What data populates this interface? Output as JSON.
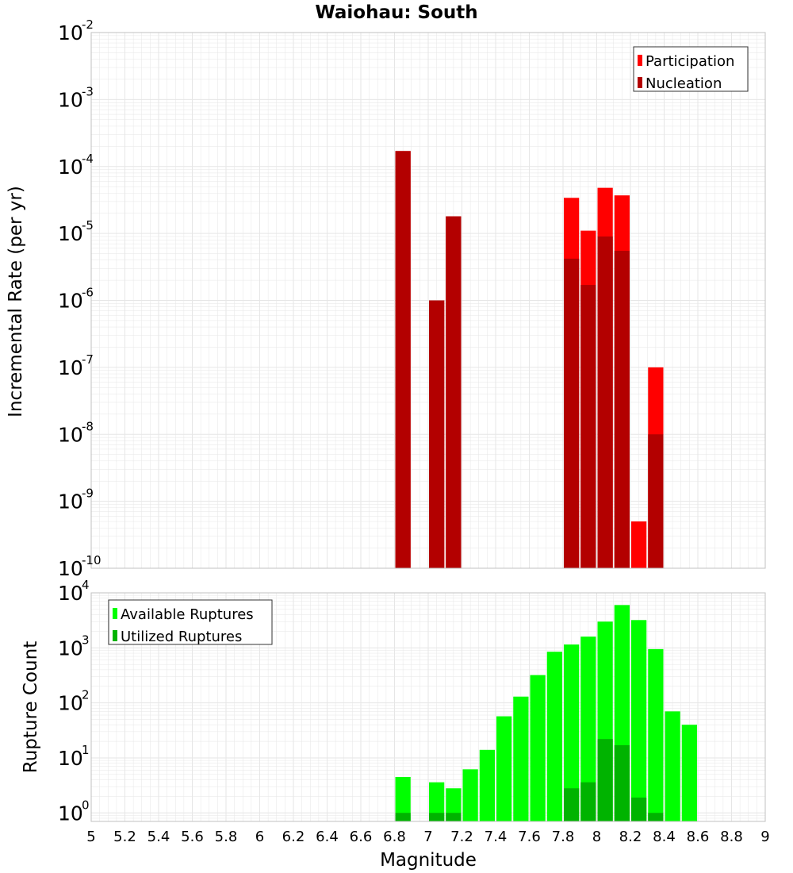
{
  "title": "Waiohau: South",
  "xlabel": "Magnitude",
  "x_ticks": [
    "5",
    "5.2",
    "5.4",
    "5.6",
    "5.8",
    "6",
    "6.2",
    "6.4",
    "6.6",
    "6.8",
    "7",
    "7.2",
    "7.4",
    "7.6",
    "7.8",
    "8",
    "8.2",
    "8.4",
    "8.6",
    "8.8",
    "9"
  ],
  "colors": {
    "participation": "#ff0000",
    "nucleation": "#b30000",
    "available": "#00ff00",
    "utilized": "#00b300",
    "grid": "#e6e6e6",
    "frame": "#c0c0c0"
  },
  "chart_data": [
    {
      "type": "bar",
      "title": "Waiohau: South",
      "xlabel": "Magnitude",
      "ylabel": "Incremental Rate (per yr)",
      "xlim": [
        5,
        9
      ],
      "ylim": [
        1e-10,
        0.01
      ],
      "y_scale": "log",
      "y_tick_base": "10",
      "y_tick_exponents": [
        "-2",
        "-3",
        "-4",
        "-5",
        "-6",
        "-7",
        "-8",
        "-9",
        "-10"
      ],
      "bin_width": 0.1,
      "legend": [
        "Participation",
        "Nucleation"
      ],
      "legend_position": "top-right",
      "series": [
        {
          "name": "Participation",
          "x": [
            6.85,
            7.05,
            7.15,
            7.85,
            7.95,
            8.05,
            8.15,
            8.25,
            8.35
          ],
          "values": [
            0.00017,
            1e-06,
            1.8e-05,
            3.4e-05,
            1.1e-05,
            4.8e-05,
            3.7e-05,
            5e-10,
            1e-07
          ]
        },
        {
          "name": "Nucleation",
          "x": [
            6.85,
            7.05,
            7.15,
            7.85,
            7.95,
            8.05,
            8.15,
            8.35
          ],
          "values": [
            0.00017,
            1e-06,
            1.8e-05,
            4.2e-06,
            1.7e-06,
            9e-06,
            5.5e-06,
            1e-08
          ]
        }
      ]
    },
    {
      "type": "bar",
      "xlabel": "Magnitude",
      "ylabel": "Rupture Count",
      "xlim": [
        5,
        9
      ],
      "ylim": [
        0.7,
        10000
      ],
      "y_scale": "log",
      "y_tick_base": "10",
      "y_tick_exponents": [
        "4",
        "3",
        "2",
        "1",
        "0"
      ],
      "bin_width": 0.1,
      "legend": [
        "Available Ruptures",
        "Utilized Ruptures"
      ],
      "legend_position": "top-left",
      "series": [
        {
          "name": "Available Ruptures",
          "x": [
            6.85,
            7.05,
            7.15,
            7.25,
            7.35,
            7.45,
            7.55,
            7.65,
            7.75,
            7.85,
            7.95,
            8.05,
            8.15,
            8.25,
            8.35,
            8.45,
            8.55
          ],
          "values": [
            4.5,
            3.6,
            2.8,
            6.2,
            14,
            57,
            130,
            320,
            850,
            1150,
            1600,
            3000,
            6000,
            3200,
            950,
            70,
            40
          ]
        },
        {
          "name": "Utilized Ruptures",
          "x": [
            6.85,
            7.05,
            7.15,
            7.85,
            7.95,
            8.05,
            8.15,
            8.25,
            8.35
          ],
          "values": [
            1,
            1,
            1,
            2.8,
            3.6,
            22,
            17,
            1.9,
            1
          ]
        }
      ]
    }
  ]
}
